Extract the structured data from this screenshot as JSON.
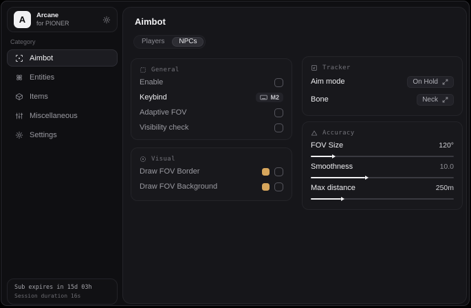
{
  "app": {
    "name": "Arcane",
    "subtitle": "for PIONER",
    "logo_letter": "A"
  },
  "colors": {
    "accent_swatch": "#d7a65c",
    "slider_fill": "#f2f2f4"
  },
  "sidebar": {
    "category_label": "Category",
    "items": [
      {
        "label": "Aimbot",
        "icon": "crosshair-scan-icon",
        "active": true
      },
      {
        "label": "Entities",
        "icon": "atom-icon",
        "active": false
      },
      {
        "label": "Items",
        "icon": "box-icon",
        "active": false
      },
      {
        "label": "Miscellaneous",
        "icon": "sliders-icon",
        "active": false
      },
      {
        "label": "Settings",
        "icon": "gear-icon",
        "active": false
      }
    ],
    "footer": {
      "line1": "Sub expires in 15d 03h",
      "line2": "Session duration 16s"
    }
  },
  "main": {
    "title": "Aimbot",
    "tabs": [
      {
        "label": "Players",
        "active": false
      },
      {
        "label": "NPCs",
        "active": true
      }
    ],
    "general": {
      "title": "General",
      "icon": "dashed-square-icon",
      "rows": [
        {
          "label": "Enable",
          "control": "checkbox",
          "checked": false
        },
        {
          "label": "Keybind",
          "control": "keybind",
          "value": "M2"
        },
        {
          "label": "Adaptive FOV",
          "control": "checkbox",
          "checked": false
        },
        {
          "label": "Visibility check",
          "control": "checkbox",
          "checked": false
        }
      ]
    },
    "visual": {
      "title": "Visual",
      "icon": "aperture-icon",
      "rows": [
        {
          "label": "Draw FOV Border",
          "control": "color+checkbox",
          "color": "#d7a65c",
          "checked": false
        },
        {
          "label": "Draw FOV Background",
          "control": "color+checkbox",
          "color": "#d7a65c",
          "checked": false
        }
      ]
    },
    "tracker": {
      "title": "Tracker",
      "icon": "box-arrow-icon",
      "rows": [
        {
          "label": "Aim mode",
          "control": "select",
          "value": "On Hold"
        },
        {
          "label": "Bone",
          "control": "select",
          "value": "Neck"
        }
      ]
    },
    "accuracy": {
      "title": "Accuracy",
      "icon": "triangle-icon",
      "sliders": [
        {
          "label": "FOV Size",
          "value": "120°",
          "percent": 15
        },
        {
          "label": "Smoothness",
          "value": "10.0",
          "percent": 38
        },
        {
          "label": "Max distance",
          "value": "250m",
          "percent": 21
        }
      ]
    }
  }
}
